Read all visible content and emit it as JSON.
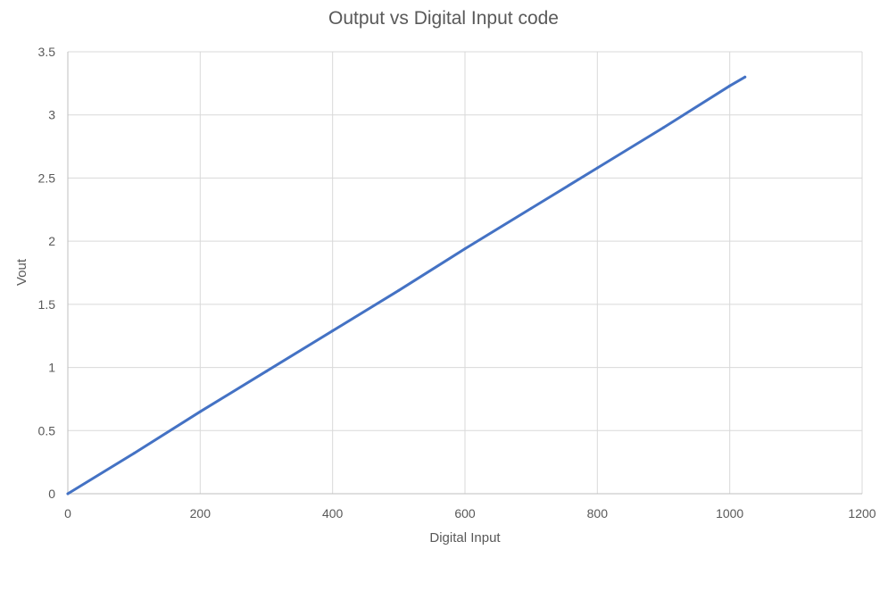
{
  "chart_data": {
    "type": "scatter",
    "title": "Output vs Digital Input code",
    "xlabel": "Digital Input",
    "ylabel": "Vout",
    "xlim": [
      0,
      1200
    ],
    "ylim": [
      0,
      3.5
    ],
    "x_ticks": [
      0,
      200,
      400,
      600,
      800,
      1000,
      1200
    ],
    "y_ticks": [
      0,
      0.5,
      1,
      1.5,
      2,
      2.5,
      3,
      3.5
    ],
    "x_tick_labels": [
      "0",
      "200",
      "400",
      "600",
      "800",
      "1000",
      "1200"
    ],
    "y_tick_labels": [
      "0",
      "0.5",
      "1",
      "1.5",
      "2",
      "2.5",
      "3",
      "3.5"
    ],
    "grid": true,
    "legend": "none",
    "series": [
      {
        "color": "#4472c4",
        "x": [
          0,
          100,
          200,
          300,
          400,
          500,
          600,
          700,
          800,
          900,
          1000,
          1023
        ],
        "y": [
          0,
          0.32,
          0.65,
          0.97,
          1.29,
          1.61,
          1.94,
          2.26,
          2.58,
          2.9,
          3.23,
          3.3
        ]
      }
    ]
  }
}
